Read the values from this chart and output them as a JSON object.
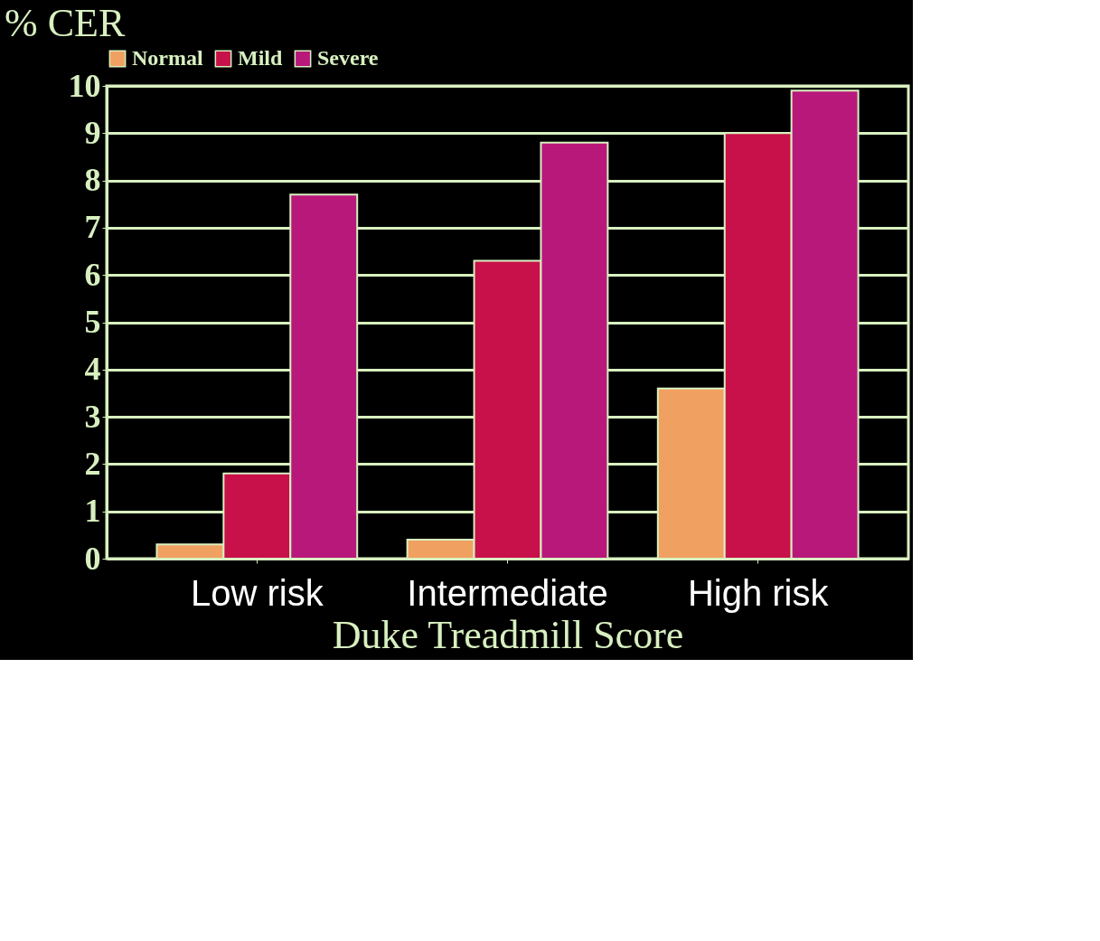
{
  "chart_data": {
    "type": "bar",
    "ylabel": "% CER",
    "xlabel": "Duke Treadmill Score",
    "categories": [
      "Low risk",
      "Intermediate",
      "High risk"
    ],
    "series": [
      {
        "name": "Normal",
        "color": "#f0a060",
        "values": [
          0.3,
          0.4,
          3.6
        ]
      },
      {
        "name": "Mild",
        "color": "#c8104a",
        "values": [
          1.8,
          6.3,
          9.0
        ]
      },
      {
        "name": "Severe",
        "color": "#b8187a",
        "values": [
          7.7,
          8.8,
          9.9
        ]
      }
    ],
    "ylim": [
      0,
      10
    ],
    "yticks": [
      0,
      1,
      2,
      3,
      4,
      5,
      6,
      7,
      8,
      9,
      10
    ],
    "grid": "y",
    "legend": "top"
  }
}
